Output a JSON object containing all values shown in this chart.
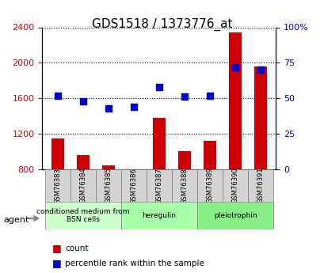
{
  "title": "GDS1518 / 1373776_at",
  "samples": [
    "GSM76383",
    "GSM76384",
    "GSM76385",
    "GSM76386",
    "GSM76387",
    "GSM76388",
    "GSM76389",
    "GSM76390",
    "GSM76391"
  ],
  "counts": [
    1150,
    960,
    840,
    790,
    1380,
    1000,
    1120,
    2340,
    1960
  ],
  "percentile_ranks": [
    52,
    48,
    43,
    44,
    58,
    51,
    52,
    72,
    70
  ],
  "ylim_left": [
    800,
    2400
  ],
  "ylim_right": [
    0,
    100
  ],
  "yticks_left": [
    800,
    1200,
    1600,
    2000,
    2400
  ],
  "yticks_right": [
    0,
    25,
    50,
    75,
    100
  ],
  "ytick_labels_right": [
    "0",
    "25",
    "50",
    "75",
    "100%"
  ],
  "bar_color": "#cc0000",
  "dot_color": "#0000cc",
  "agent_groups": [
    {
      "label": "conditioned medium from\nBSN cells",
      "start": 0,
      "end": 3,
      "color": "#ccffcc"
    },
    {
      "label": "heregulin",
      "start": 3,
      "end": 6,
      "color": "#aaffaa"
    },
    {
      "label": "pleiotrophin",
      "start": 6,
      "end": 9,
      "color": "#88ee88"
    }
  ],
  "legend_count_label": "count",
  "legend_percentile_label": "percentile rank within the sample",
  "agent_label": "agent",
  "grid_color": "#000000",
  "background_color": "#ffffff",
  "plot_bg_color": "#ffffff",
  "tick_label_color_left": "#cc0000",
  "tick_label_color_right": "#0000cc"
}
